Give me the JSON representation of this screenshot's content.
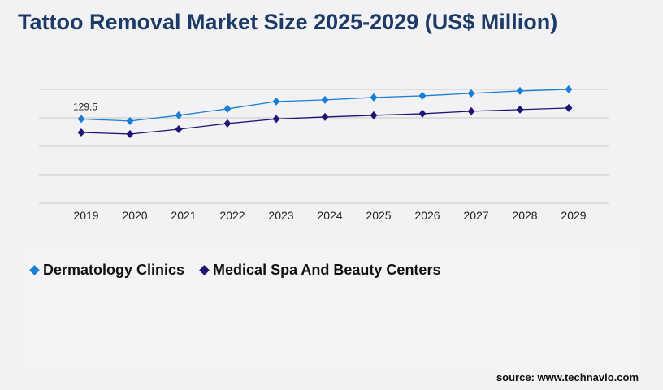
{
  "title": "Tattoo Removal Market Size 2025-2029 (US$ Million)",
  "source": "source: www.technavio.com",
  "chart_data": {
    "type": "line",
    "title": "Tattoo Removal Market Size 2025-2029 (US$ Million)",
    "categories": [
      "2019",
      "2020",
      "2021",
      "2022",
      "2023",
      "2024",
      "2025",
      "2026",
      "2027",
      "2028",
      "2029"
    ],
    "ylim": [
      0,
      175
    ],
    "grid": true,
    "legend_placement": "bottom-left",
    "series": [
      {
        "name": "Dermatology Clinics",
        "color": "#1a7fd4",
        "values": [
          129.5,
          126.4,
          135.1,
          145.1,
          156.4,
          158.9,
          162.6,
          165.1,
          168.9,
          172.6,
          175.1
        ]
      },
      {
        "name": "Medical Spa And Beauty Centers",
        "color": "#1c1573",
        "values": [
          108.8,
          106.3,
          113.8,
          122.6,
          129.5,
          132.6,
          135.1,
          137.6,
          141.4,
          143.9,
          146.4
        ]
      }
    ],
    "annotations": [
      {
        "series": 0,
        "index": 0,
        "text": "129.5"
      }
    ]
  }
}
